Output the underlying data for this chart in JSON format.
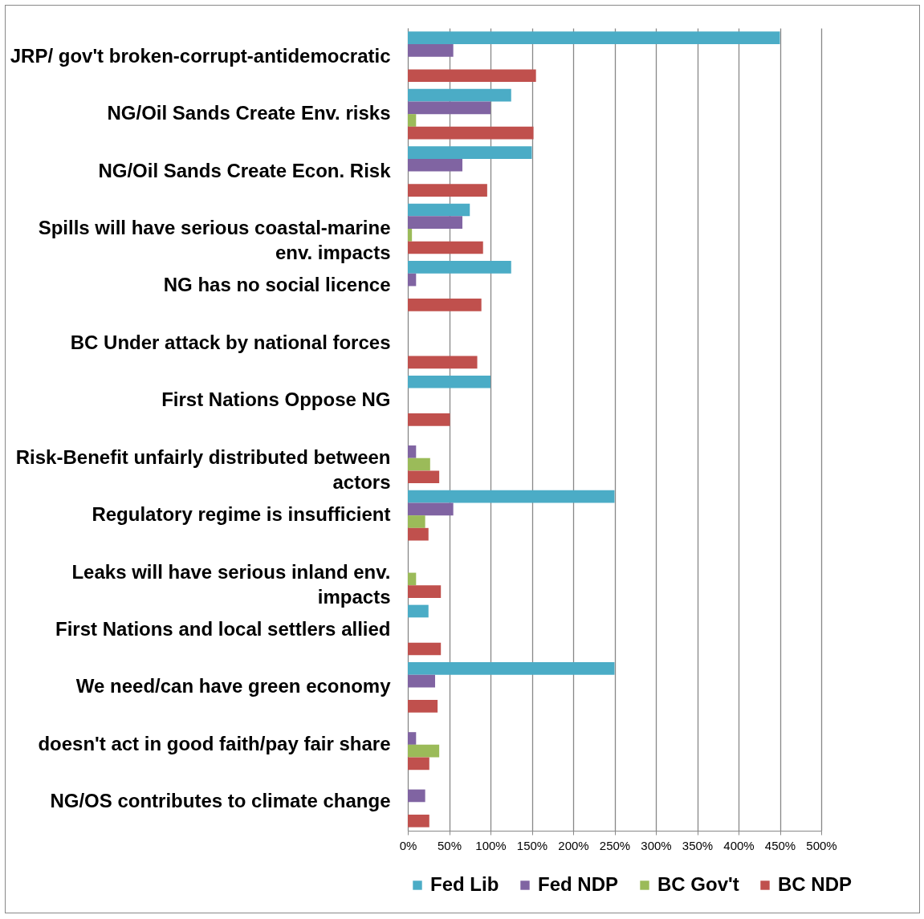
{
  "chart_data": {
    "type": "bar",
    "orientation": "horizontal",
    "categories": [
      "JRP/ gov't broken-corrupt-antidemocratic",
      "NG/Oil Sands Create Env. risks",
      "NG/Oil Sands Create Econ. Risk",
      "Spills will have serious coastal-marine env. impacts",
      "NG has no social licence",
      "BC Under attack by national forces",
      "First Nations Oppose NG",
      "Risk-Benefit unfairly distributed between actors",
      "Regulatory regime is insufficient",
      "Leaks will have serious inland env. impacts",
      "First Nations and local settlers allied",
      "We need/can have green economy",
      "doesn't act in good faith/pay fair share",
      "NG/OS contributes to climate change"
    ],
    "series": [
      {
        "name": "Fed Lib",
        "color": "#4bacc6",
        "values": [
          450,
          125,
          150,
          75,
          125,
          null,
          100,
          null,
          250,
          null,
          25,
          250,
          null,
          null
        ]
      },
      {
        "name": "Fed NDP",
        "color": "#8064a2",
        "values": [
          55,
          100,
          66,
          66,
          10,
          null,
          null,
          10,
          55,
          null,
          null,
          33,
          10,
          21
        ]
      },
      {
        "name": "BC Gov't",
        "color": "#9bbb59",
        "values": [
          null,
          10,
          null,
          5,
          null,
          null,
          null,
          27,
          21,
          10,
          null,
          null,
          38,
          null
        ]
      },
      {
        "name": "BC NDP",
        "color": "#c0504d",
        "values": [
          155,
          152,
          96,
          91,
          89,
          84,
          51,
          38,
          25,
          40,
          40,
          36,
          26,
          26
        ]
      }
    ],
    "xlim": [
      0,
      500
    ],
    "xticks": [
      {
        "value": 0,
        "label": "0%"
      },
      {
        "value": 50,
        "label": "50%"
      },
      {
        "value": 100,
        "label": "100%"
      },
      {
        "value": 150,
        "label": "150%"
      },
      {
        "value": 200,
        "label": "200%"
      },
      {
        "value": 250,
        "label": "250%"
      },
      {
        "value": 300,
        "label": "300%"
      },
      {
        "value": 350,
        "label": "350%"
      },
      {
        "value": 400,
        "label": "400%"
      },
      {
        "value": 450,
        "label": "450%"
      },
      {
        "value": 500,
        "label": "500%"
      }
    ],
    "grid": "x",
    "legend": "bottom"
  }
}
